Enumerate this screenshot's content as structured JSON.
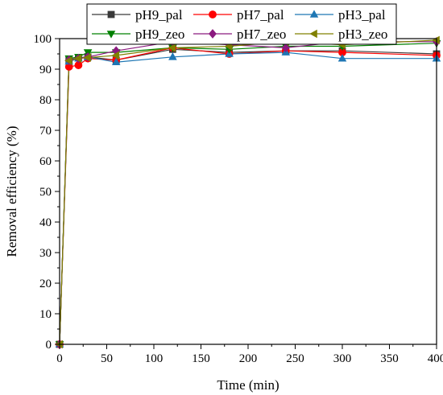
{
  "chart_data": {
    "type": "line",
    "title": "",
    "xlabel": "Time (min)",
    "ylabel": "Removal efficiency (%)",
    "xlim": [
      0,
      400
    ],
    "ylim": [
      0,
      100
    ],
    "xticks": [
      0,
      50,
      100,
      150,
      200,
      250,
      300,
      350,
      400
    ],
    "yticks": [
      0,
      10,
      20,
      30,
      40,
      50,
      60,
      70,
      80,
      90,
      100
    ],
    "grid": false,
    "legend_position": "top",
    "series": [
      {
        "name": "pH9_pal",
        "color": "#3a3a3a",
        "marker": "square",
        "x": [
          0,
          10,
          20,
          30,
          60,
          120,
          180,
          240,
          300,
          400
        ],
        "y": [
          0,
          93.0,
          93.8,
          94.0,
          93.0,
          96.5,
          95.5,
          96.0,
          96.0,
          95.0
        ]
      },
      {
        "name": "pH7_pal",
        "color": "#ff0000",
        "marker": "circle",
        "x": [
          0,
          10,
          20,
          30,
          60,
          120,
          180,
          240,
          300,
          400
        ],
        "y": [
          0,
          90.8,
          91.3,
          93.5,
          93.0,
          97.0,
          95.0,
          96.0,
          95.5,
          94.5
        ]
      },
      {
        "name": "pH3_pal",
        "color": "#1f77b4",
        "marker": "triangle-up",
        "x": [
          0,
          10,
          20,
          30,
          60,
          120,
          180,
          240,
          300,
          400
        ],
        "y": [
          0,
          92.5,
          93.5,
          94.0,
          92.3,
          94.0,
          95.0,
          95.5,
          93.5,
          93.5
        ]
      },
      {
        "name": "pH9_zeo",
        "color": "#008000",
        "marker": "triangle-down",
        "x": [
          0,
          10,
          20,
          30,
          60,
          120,
          180,
          240,
          300,
          400
        ],
        "y": [
          0,
          93.5,
          94.0,
          95.5,
          95.5,
          97.0,
          96.5,
          97.5,
          97.5,
          98.5
        ]
      },
      {
        "name": "pH7_zeo",
        "color": "#8b1a7f",
        "marker": "diamond",
        "x": [
          0,
          10,
          20,
          30,
          60,
          120,
          180,
          240,
          300,
          400
        ],
        "y": [
          0,
          93.0,
          93.5,
          94.0,
          96.0,
          99.0,
          98.0,
          97.0,
          99.0,
          99.0
        ]
      },
      {
        "name": "pH3_zeo",
        "color": "#808000",
        "marker": "triangle-left",
        "x": [
          0,
          10,
          20,
          30,
          60,
          120,
          180,
          240,
          300,
          400
        ],
        "y": [
          0,
          92.8,
          93.5,
          93.8,
          94.5,
          97.0,
          97.5,
          99.0,
          98.0,
          99.5
        ]
      }
    ]
  }
}
